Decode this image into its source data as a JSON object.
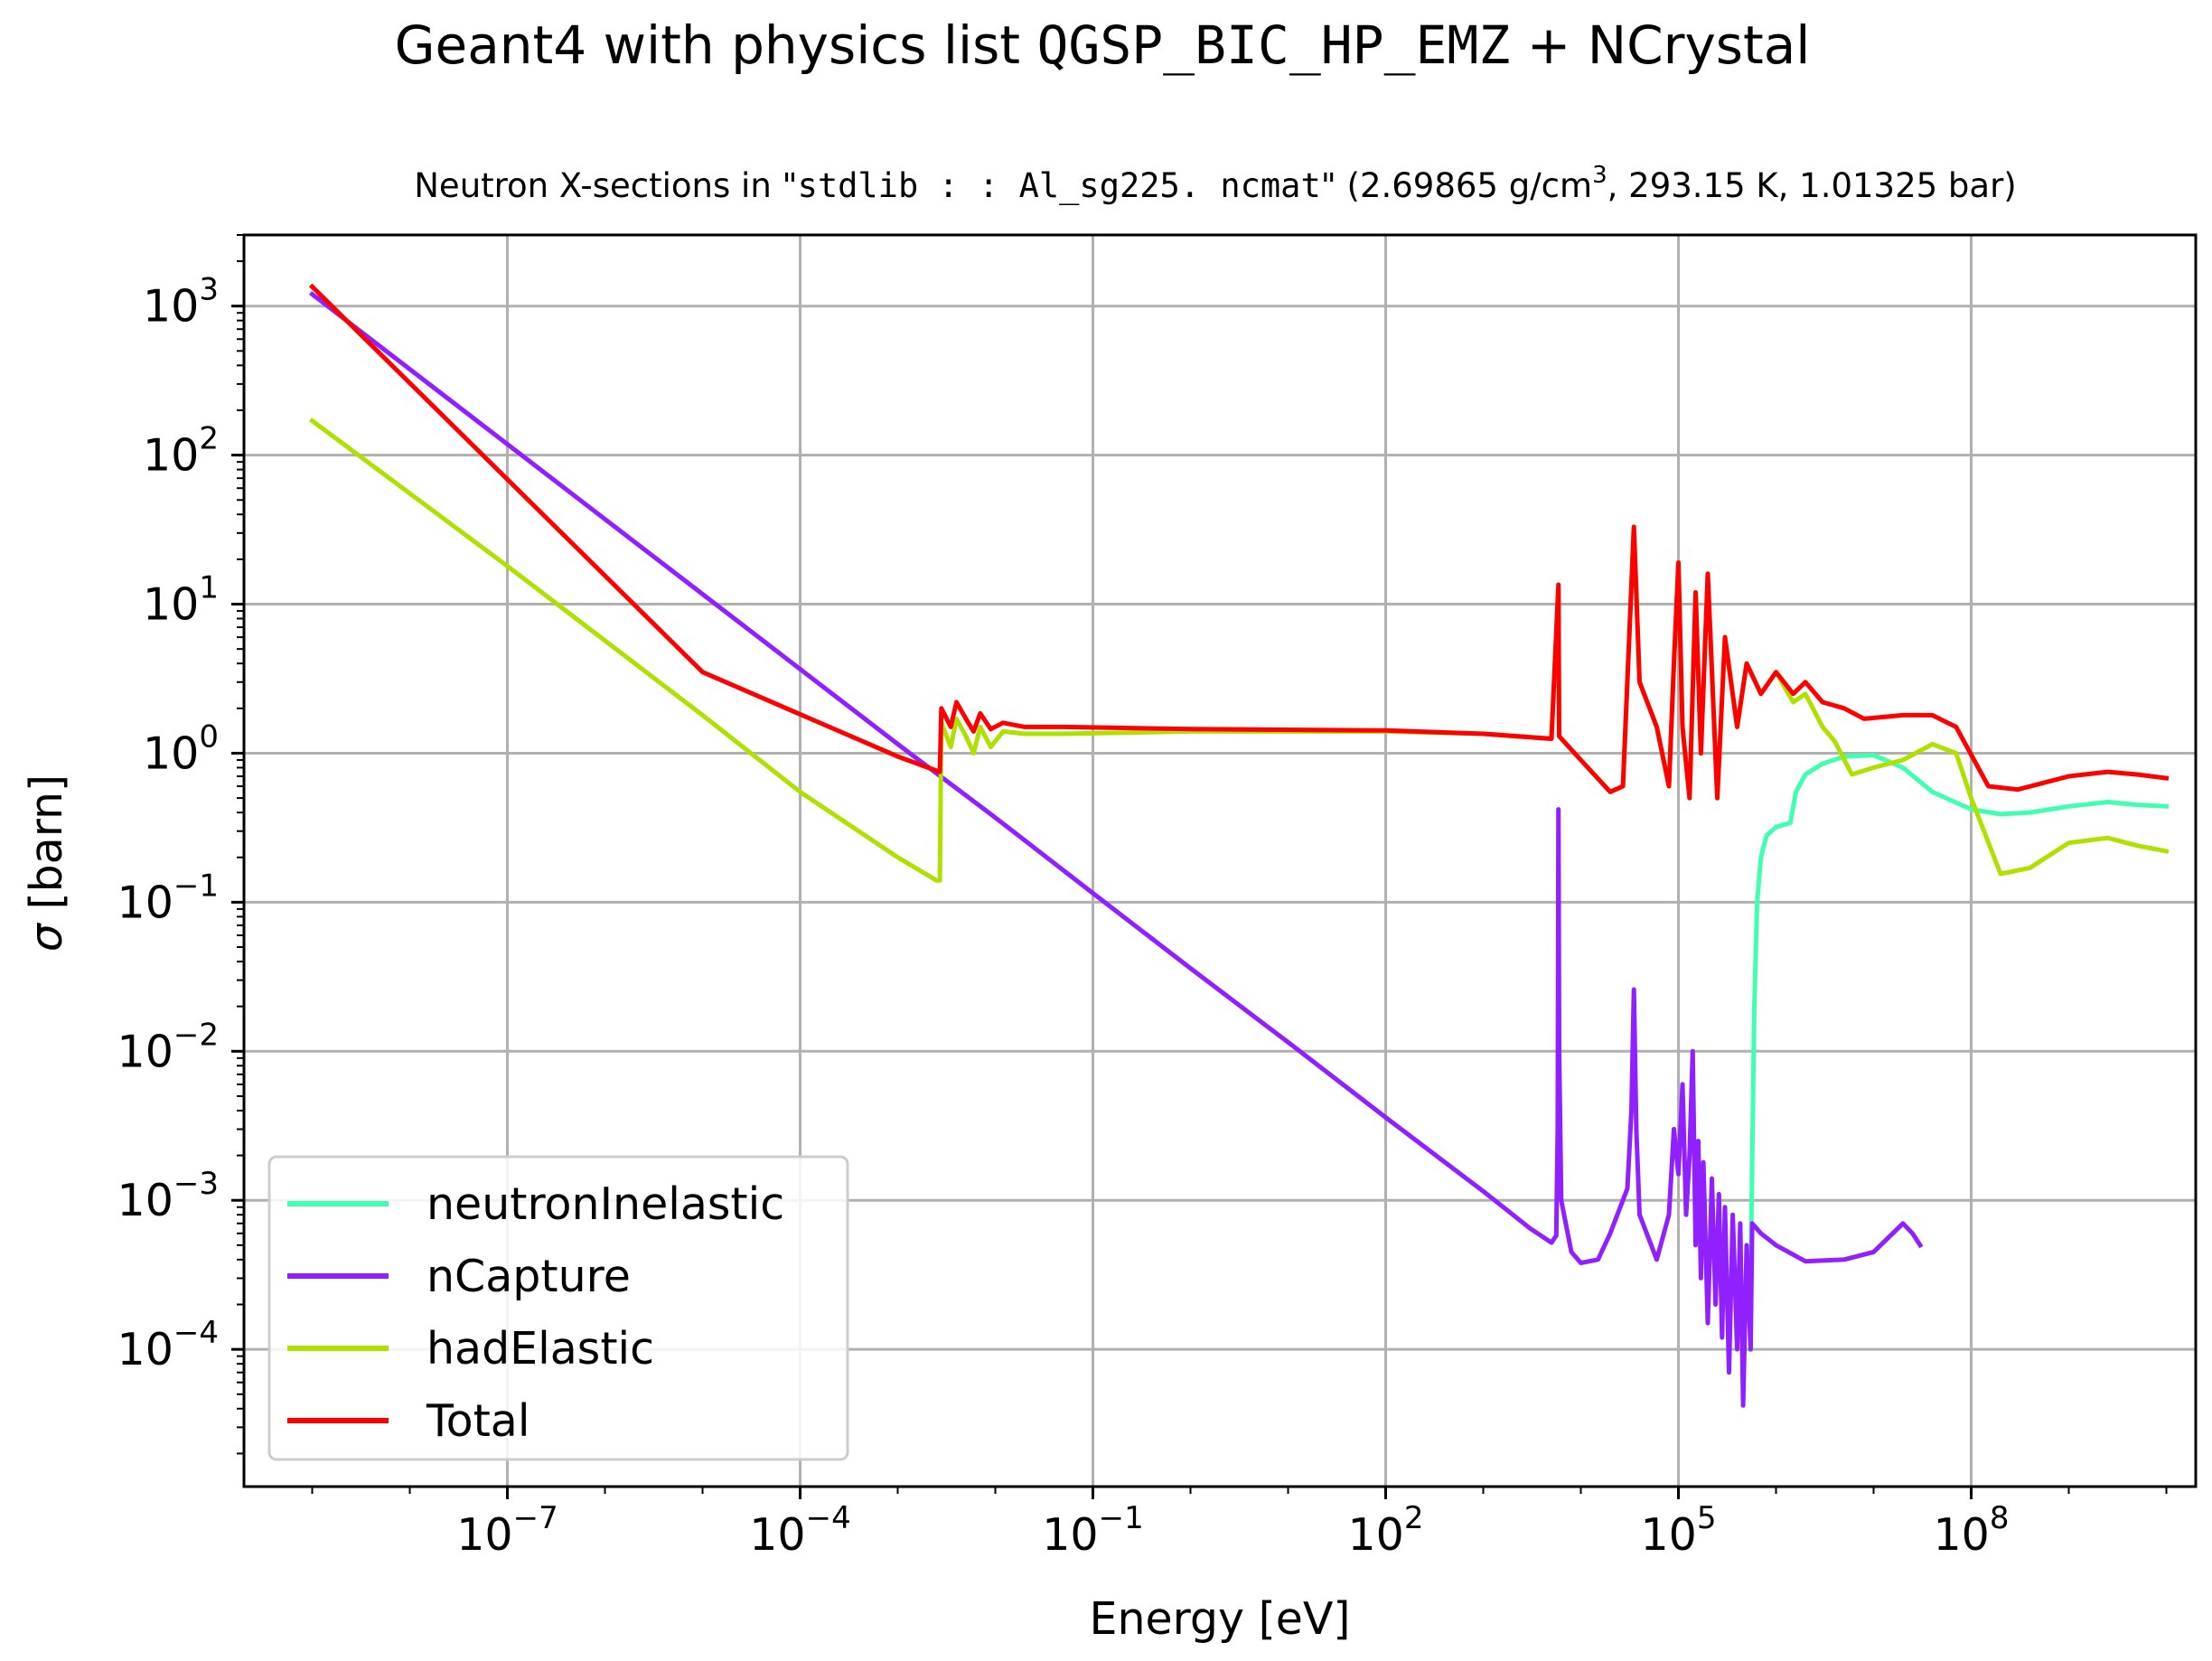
{
  "figure": {
    "suptitle_prefix": "Geant4 with physics list ",
    "suptitle_physics_list": "QGSP_BIC_HP_EMZ",
    "suptitle_suffix": " + NCrystal"
  },
  "chart_data": {
    "type": "line",
    "title_prefix": "Neutron X-sections in \"",
    "title_material": "stdlib::Al_sg225.ncmat",
    "title_material_display": "stdlib : : Al_sg225. ncmat",
    "title_density": "\" (2.69865 g/cm",
    "title_density_exp": "3",
    "title_conditions": ", 293.15 K, 1.01325 bar)",
    "xlabel": "Energy [eV]",
    "ylabel_symbol": "σ",
    "ylabel_unit": " [barn]",
    "xscale": "log",
    "yscale": "log",
    "xlim": [
      2e-10,
      20000000000.0
    ],
    "ylim": [
      1.2e-05,
      3000
    ],
    "grid": true,
    "legend_position": "lower-left",
    "x_ticks": [
      {
        "value": 1e-07,
        "base": "10",
        "exp": "−7"
      },
      {
        "value": 0.0001,
        "base": "10",
        "exp": "−4"
      },
      {
        "value": 0.1,
        "base": "10",
        "exp": "−1"
      },
      {
        "value": 100,
        "base": "10",
        "exp": "2"
      },
      {
        "value": 100000,
        "base": "10",
        "exp": "5"
      },
      {
        "value": 100000000,
        "base": "10",
        "exp": "8"
      }
    ],
    "y_ticks": [
      {
        "value": 0.0001,
        "base": "10",
        "exp": "−4"
      },
      {
        "value": 0.001,
        "base": "10",
        "exp": "−3"
      },
      {
        "value": 0.01,
        "base": "10",
        "exp": "−2"
      },
      {
        "value": 0.1,
        "base": "10",
        "exp": "−1"
      },
      {
        "value": 1,
        "base": "10",
        "exp": "0"
      },
      {
        "value": 10,
        "base": "10",
        "exp": "1"
      },
      {
        "value": 100,
        "base": "10",
        "exp": "2"
      },
      {
        "value": 1000,
        "base": "10",
        "exp": "3"
      }
    ],
    "series": [
      {
        "name": "neutronInelastic",
        "color": "#40ffb0",
        "points": [
          [
            550000,
            0.0001
          ],
          [
            560000,
            0.0008
          ],
          [
            600000,
            0.02
          ],
          [
            640000,
            0.1
          ],
          [
            700000,
            0.2
          ],
          [
            800000,
            0.28
          ],
          [
            1000000,
            0.32
          ],
          [
            1400000,
            0.34
          ],
          [
            1600000,
            0.55
          ],
          [
            2000000,
            0.72
          ],
          [
            3000000,
            0.85
          ],
          [
            5000000,
            0.95
          ],
          [
            10000000,
            0.97
          ],
          [
            20000000,
            0.8
          ],
          [
            40000000,
            0.55
          ],
          [
            100000000,
            0.42
          ],
          [
            200000000,
            0.39
          ],
          [
            400000000,
            0.4
          ],
          [
            1000000000,
            0.44
          ],
          [
            2500000000,
            0.47
          ],
          [
            5000000000,
            0.45
          ],
          [
            10000000000,
            0.44
          ]
        ]
      },
      {
        "name": "nCapture",
        "color": "#9020ff",
        "points": [
          [
            1e-09,
            1200
          ],
          [
            0.001,
            1.15
          ],
          [
            0.01,
            0.37
          ],
          [
            0.1,
            0.115
          ],
          [
            1,
            0.036
          ],
          [
            10,
            0.0115
          ],
          [
            100,
            0.0036
          ],
          [
            1000,
            0.00115
          ],
          [
            3000,
            0.00065
          ],
          [
            5000,
            0.00052
          ],
          [
            5600,
            0.00058
          ],
          [
            5800,
            0.003
          ],
          [
            5900,
            0.42
          ],
          [
            6000,
            0.01
          ],
          [
            6300,
            0.001
          ],
          [
            8000,
            0.00045
          ],
          [
            10000,
            0.00038
          ],
          [
            15000,
            0.0004
          ],
          [
            20000,
            0.0006
          ],
          [
            30000,
            0.0012
          ],
          [
            33000,
            0.004
          ],
          [
            35000,
            0.026
          ],
          [
            37000,
            0.003
          ],
          [
            40000,
            0.0008
          ],
          [
            60000,
            0.0004
          ],
          [
            80000,
            0.0008
          ],
          [
            90000,
            0.003
          ],
          [
            100000,
            0.0015
          ],
          [
            110000,
            0.006
          ],
          [
            120000,
            0.0008
          ],
          [
            130000,
            0.002
          ],
          [
            140000,
            0.01
          ],
          [
            150000,
            0.0005
          ],
          [
            160000,
            0.0025
          ],
          [
            170000,
            0.0003
          ],
          [
            180000,
            0.0018
          ],
          [
            200000,
            0.00015
          ],
          [
            220000,
            0.0014
          ],
          [
            240000,
            0.0002
          ],
          [
            260000,
            0.0011
          ],
          [
            280000,
            0.00012
          ],
          [
            300000,
            0.0009
          ],
          [
            330000,
            7e-05
          ],
          [
            360000,
            0.0008
          ],
          [
            400000,
            0.0001
          ],
          [
            430000,
            0.0007
          ],
          [
            460000,
            4.2e-05
          ],
          [
            500000,
            0.0005
          ],
          [
            550000,
            0.0001
          ],
          [
            570000,
            0.0007
          ],
          [
            700000,
            0.0006
          ],
          [
            1000000,
            0.0005
          ],
          [
            2000000,
            0.00039
          ],
          [
            5000000,
            0.0004
          ],
          [
            10000000,
            0.00045
          ],
          [
            20000000,
            0.0007
          ],
          [
            25000000,
            0.0006
          ],
          [
            30000000,
            0.0005
          ]
        ]
      },
      {
        "name": "hadElastic",
        "color": "#b0e000",
        "points": [
          [
            1e-09,
            170
          ],
          [
            1e-07,
            18
          ],
          [
            1e-05,
            1.8
          ],
          [
            0.0001,
            0.55
          ],
          [
            0.001,
            0.2
          ],
          [
            0.0025,
            0.14
          ],
          [
            0.0027,
            0.14
          ],
          [
            0.0028,
            1.6
          ],
          [
            0.0035,
            1.1
          ],
          [
            0.004,
            1.7
          ],
          [
            0.005,
            1.3
          ],
          [
            0.006,
            1.0
          ],
          [
            0.007,
            1.5
          ],
          [
            0.009,
            1.1
          ],
          [
            0.012,
            1.4
          ],
          [
            0.02,
            1.35
          ],
          [
            0.05,
            1.35
          ],
          [
            1,
            1.4
          ],
          [
            100,
            1.4
          ],
          [
            1000,
            1.35
          ],
          [
            5000,
            1.25
          ],
          [
            5900,
            13
          ],
          [
            6000,
            1.3
          ],
          [
            10000,
            0.9
          ],
          [
            20000,
            0.55
          ],
          [
            27000,
            0.6
          ],
          [
            35000,
            33
          ],
          [
            40000,
            3
          ],
          [
            60000,
            1.5
          ],
          [
            80000,
            0.6
          ],
          [
            90000,
            4
          ],
          [
            100000,
            19
          ],
          [
            110000,
            1.5
          ],
          [
            130000,
            0.5
          ],
          [
            150000,
            12
          ],
          [
            170000,
            1
          ],
          [
            200000,
            16
          ],
          [
            250000,
            0.5
          ],
          [
            300000,
            6
          ],
          [
            400000,
            1.5
          ],
          [
            500000,
            4
          ],
          [
            700000,
            2.5
          ],
          [
            1000000,
            3.5
          ],
          [
            1500000,
            2.2
          ],
          [
            2000000,
            2.5
          ],
          [
            3000000,
            1.5
          ],
          [
            4000000,
            1.2
          ],
          [
            6000000,
            0.72
          ],
          [
            10000000,
            0.8
          ],
          [
            20000000,
            0.9
          ],
          [
            40000000,
            1.15
          ],
          [
            70000000,
            1.0
          ],
          [
            100000000,
            0.5
          ],
          [
            200000000,
            0.155
          ],
          [
            400000000,
            0.17
          ],
          [
            1000000000,
            0.25
          ],
          [
            2500000000,
            0.27
          ],
          [
            5000000000,
            0.24
          ],
          [
            10000000000,
            0.22
          ]
        ]
      },
      {
        "name": "Total",
        "color": "#ff0000",
        "points": [
          [
            1e-09,
            1350
          ],
          [
            1e-05,
            3.5
          ],
          [
            0.001,
            0.95
          ],
          [
            0.0027,
            0.75
          ],
          [
            0.0028,
            2.0
          ],
          [
            0.0035,
            1.5
          ],
          [
            0.004,
            2.2
          ],
          [
            0.005,
            1.7
          ],
          [
            0.006,
            1.4
          ],
          [
            0.007,
            1.85
          ],
          [
            0.009,
            1.45
          ],
          [
            0.012,
            1.6
          ],
          [
            0.02,
            1.5
          ],
          [
            0.05,
            1.5
          ],
          [
            1,
            1.45
          ],
          [
            100,
            1.42
          ],
          [
            1000,
            1.35
          ],
          [
            5000,
            1.25
          ],
          [
            5900,
            13.5
          ],
          [
            6000,
            1.3
          ],
          [
            10000,
            0.9
          ],
          [
            20000,
            0.55
          ],
          [
            27000,
            0.6
          ],
          [
            35000,
            33
          ],
          [
            40000,
            3
          ],
          [
            60000,
            1.5
          ],
          [
            80000,
            0.6
          ],
          [
            90000,
            4
          ],
          [
            100000,
            19
          ],
          [
            110000,
            1.5
          ],
          [
            130000,
            0.5
          ],
          [
            150000,
            12
          ],
          [
            170000,
            1
          ],
          [
            200000,
            16
          ],
          [
            250000,
            0.5
          ],
          [
            300000,
            6
          ],
          [
            400000,
            1.5
          ],
          [
            500000,
            4
          ],
          [
            700000,
            2.5
          ],
          [
            1000000,
            3.5
          ],
          [
            1500000,
            2.5
          ],
          [
            2000000,
            3
          ],
          [
            3000000,
            2.2
          ],
          [
            5000000,
            2
          ],
          [
            8000000,
            1.7
          ],
          [
            20000000,
            1.8
          ],
          [
            40000000,
            1.8
          ],
          [
            70000000,
            1.5
          ],
          [
            150000000,
            0.6
          ],
          [
            300000000,
            0.57
          ],
          [
            1000000000,
            0.7
          ],
          [
            2500000000,
            0.75
          ],
          [
            5000000000,
            0.72
          ],
          [
            10000000000,
            0.68
          ]
        ]
      }
    ]
  }
}
